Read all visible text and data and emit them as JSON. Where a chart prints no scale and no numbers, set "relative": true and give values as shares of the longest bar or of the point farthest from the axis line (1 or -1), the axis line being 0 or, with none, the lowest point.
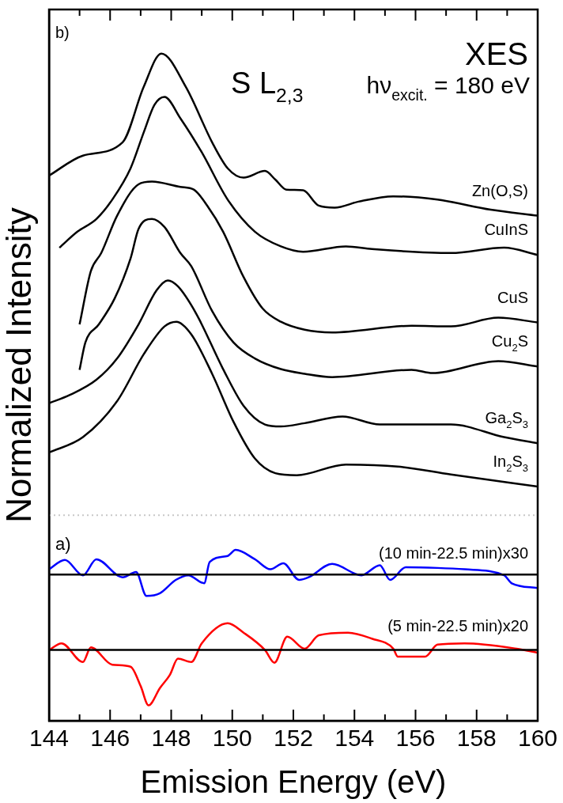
{
  "chart_data": {
    "type": "line",
    "relative": true,
    "xlabel": "Emission Energy (eV)",
    "ylabel": "Normalized Intensity",
    "xlim": [
      144,
      160
    ],
    "xticks": [
      144,
      {
        "value": 145,
        "label": null
      },
      146,
      {
        "value": 147,
        "label": null
      },
      148,
      {
        "value": 149,
        "label": null
      },
      150,
      {
        "value": 151,
        "label": null
      },
      152,
      {
        "value": 153,
        "label": null
      },
      154,
      {
        "value": 155,
        "label": null
      },
      156,
      {
        "value": 157,
        "label": null
      },
      158,
      {
        "value": 159,
        "label": null
      },
      160
    ],
    "annotations": [
      "b)",
      "S L$_{2,3}$",
      "XES",
      "hν$_{excit.}$ = 180 eV",
      "a)"
    ],
    "ref_lines": [
      {
        "axis": "y",
        "value": 0.308,
        "color": "#c8c8c8",
        "line_style": "dotted"
      },
      {
        "axis": "y",
        "value": 0.219,
        "color": "#000000"
      },
      {
        "axis": "y",
        "value": 0.106,
        "color": "#000000"
      }
    ],
    "series": [
      {
        "name": "Zn(O,S)",
        "color": "#000000",
        "x": [
          144,
          145.11,
          146.41,
          147.1,
          147.68,
          148.48,
          149.34,
          149.85,
          150.37,
          151.07,
          151.41,
          151.77,
          152.32,
          152.83,
          153.35,
          154.13,
          155.27,
          156.72,
          158.46,
          160
        ],
        "values": [
          0.817,
          0.847,
          0.867,
          0.95,
          1,
          0.95,
          0.867,
          0.828,
          0.814,
          0.824,
          0.811,
          0.796,
          0.795,
          0.772,
          0.769,
          0.778,
          0.786,
          0.781,
          0.766,
          0.757
        ]
      },
      {
        "name": "CuInS",
        "color": "#000000",
        "x": [
          144.34,
          144.93,
          145.55,
          146.07,
          146.67,
          147.11,
          147.45,
          147.78,
          148.3,
          149.0,
          149.85,
          150.74,
          151.59,
          152.32,
          153.72,
          154.57,
          157.16,
          158.9,
          160
        ],
        "values": [
          0.709,
          0.733,
          0.752,
          0.781,
          0.828,
          0.883,
          0.923,
          0.935,
          0.903,
          0.852,
          0.781,
          0.733,
          0.711,
          0.703,
          0.711,
          0.707,
          0.701,
          0.709,
          0.698
        ]
      },
      {
        "name": "CuS",
        "color": "#000000",
        "x": [
          145.0,
          145.37,
          145.71,
          146.23,
          146.93,
          147.37,
          148.3,
          148.74,
          149.18,
          149.7,
          150.37,
          150.99,
          151.59,
          152.37,
          153.27,
          155.87,
          157.16,
          158.71,
          160
        ],
        "values": [
          0.594,
          0.674,
          0.701,
          0.757,
          0.804,
          0.808,
          0.8,
          0.796,
          0.772,
          0.733,
          0.665,
          0.618,
          0.598,
          0.586,
          0.582,
          0.592,
          0.591,
          0.604,
          0.597
        ]
      },
      {
        "name": "Cu$_{2}$S",
        "color": "#000000",
        "x": [
          145.0,
          145.19,
          145.63,
          146.15,
          146.67,
          146.93,
          147.37,
          147.78,
          148.3,
          148.66,
          149.34,
          150.04,
          150.74,
          151.59,
          152.37,
          153.27,
          155.87,
          156.56,
          158.71,
          160
        ],
        "values": [
          0.526,
          0.567,
          0.594,
          0.633,
          0.693,
          0.737,
          0.752,
          0.74,
          0.701,
          0.681,
          0.614,
          0.567,
          0.543,
          0.527,
          0.52,
          0.515,
          0.526,
          0.521,
          0.539,
          0.531
        ]
      },
      {
        "name": "Ga$_{2}$S$_{3}$",
        "color": "#000000",
        "x": [
          144,
          144.67,
          145.55,
          146.23,
          146.93,
          147.52,
          147.89,
          148.22,
          148.82,
          149.7,
          150.37,
          151.07,
          151.59,
          152.37,
          153.61,
          154.83,
          157.16,
          158.9,
          160
        ],
        "values": [
          0.476,
          0.488,
          0.511,
          0.543,
          0.594,
          0.645,
          0.66,
          0.651,
          0.61,
          0.527,
          0.472,
          0.444,
          0.441,
          0.446,
          0.456,
          0.444,
          0.444,
          0.425,
          0.416
        ]
      },
      {
        "name": "In$_{2}$S$_{3}$",
        "color": "#000000",
        "x": [
          144,
          145.11,
          146.23,
          147.11,
          147.78,
          148.17,
          148.66,
          149.34,
          150.04,
          150.74,
          151.41,
          152.11,
          153.72,
          155.42,
          157.16,
          160
        ],
        "values": [
          0.402,
          0.425,
          0.479,
          0.55,
          0.591,
          0.598,
          0.579,
          0.52,
          0.448,
          0.393,
          0.371,
          0.368,
          0.384,
          0.381,
          0.369,
          0.351
        ]
      },
      {
        "name": "(10 min-22.5 min)x30",
        "color": "#0000ff",
        "x": [
          144,
          144.52,
          145.11,
          145.55,
          146.41,
          146.85,
          147.19,
          147.63,
          148.15,
          148.56,
          149.08,
          149.26,
          149.85,
          150.11,
          150.74,
          151.25,
          151.67,
          152.19,
          152.5,
          153.27,
          154.23,
          154.83,
          155.17,
          155.68,
          156.72,
          157.6,
          158.9,
          159.15,
          160
        ],
        "values": [
          0.227,
          0.241,
          0.218,
          0.242,
          0.215,
          0.223,
          0.187,
          0.191,
          0.211,
          0.218,
          0.206,
          0.238,
          0.247,
          0.256,
          0.242,
          0.227,
          0.236,
          0.211,
          0.215,
          0.235,
          0.218,
          0.233,
          0.211,
          0.23,
          0.229,
          0.227,
          0.218,
          0.206,
          0.199
        ]
      },
      {
        "name": "(5 min-22.5 min)x20",
        "color": "#ff0000",
        "x": [
          144,
          144.41,
          145.11,
          145.37,
          146.07,
          146.67,
          147.0,
          147.26,
          147.63,
          147.96,
          148.22,
          148.66,
          149.0,
          149.85,
          150.37,
          151.07,
          151.38,
          151.8,
          152.37,
          152.83,
          153.79,
          154.57,
          155.27,
          155.42,
          156.31,
          156.72,
          157.6,
          159.31,
          160
        ],
        "values": [
          0.106,
          0.116,
          0.088,
          0.11,
          0.084,
          0.081,
          0.052,
          0.023,
          0.049,
          0.069,
          0.093,
          0.088,
          0.116,
          0.146,
          0.132,
          0.106,
          0.087,
          0.126,
          0.108,
          0.128,
          0.132,
          0.123,
          0.108,
          0.096,
          0.096,
          0.114,
          0.116,
          0.108,
          0.102
        ]
      }
    ]
  }
}
